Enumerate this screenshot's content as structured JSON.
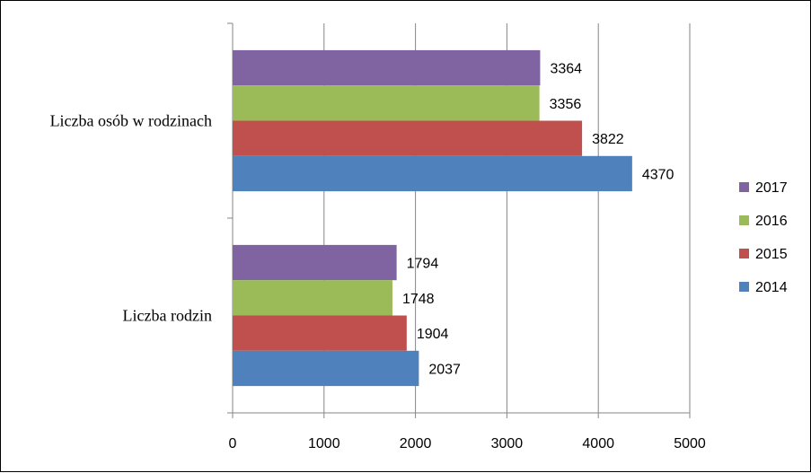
{
  "chart_data": {
    "type": "bar",
    "orientation": "horizontal",
    "categories": [
      "Liczba osób w rodzinach",
      "Liczba rodzin"
    ],
    "series": [
      {
        "name": "2017",
        "color": "#8064A2",
        "values": [
          3364,
          1794
        ]
      },
      {
        "name": "2016",
        "color": "#9BBB59",
        "values": [
          3356,
          1748
        ]
      },
      {
        "name": "2015",
        "color": "#C0504D",
        "values": [
          3822,
          1904
        ]
      },
      {
        "name": "2014",
        "color": "#4F81BD",
        "values": [
          4370,
          2037
        ]
      }
    ],
    "xlim": [
      0,
      5000
    ],
    "xticks": [
      0,
      1000,
      2000,
      3000,
      4000,
      5000
    ],
    "grid": true,
    "legend": "right",
    "title": "",
    "xlabel": "",
    "ylabel": ""
  }
}
